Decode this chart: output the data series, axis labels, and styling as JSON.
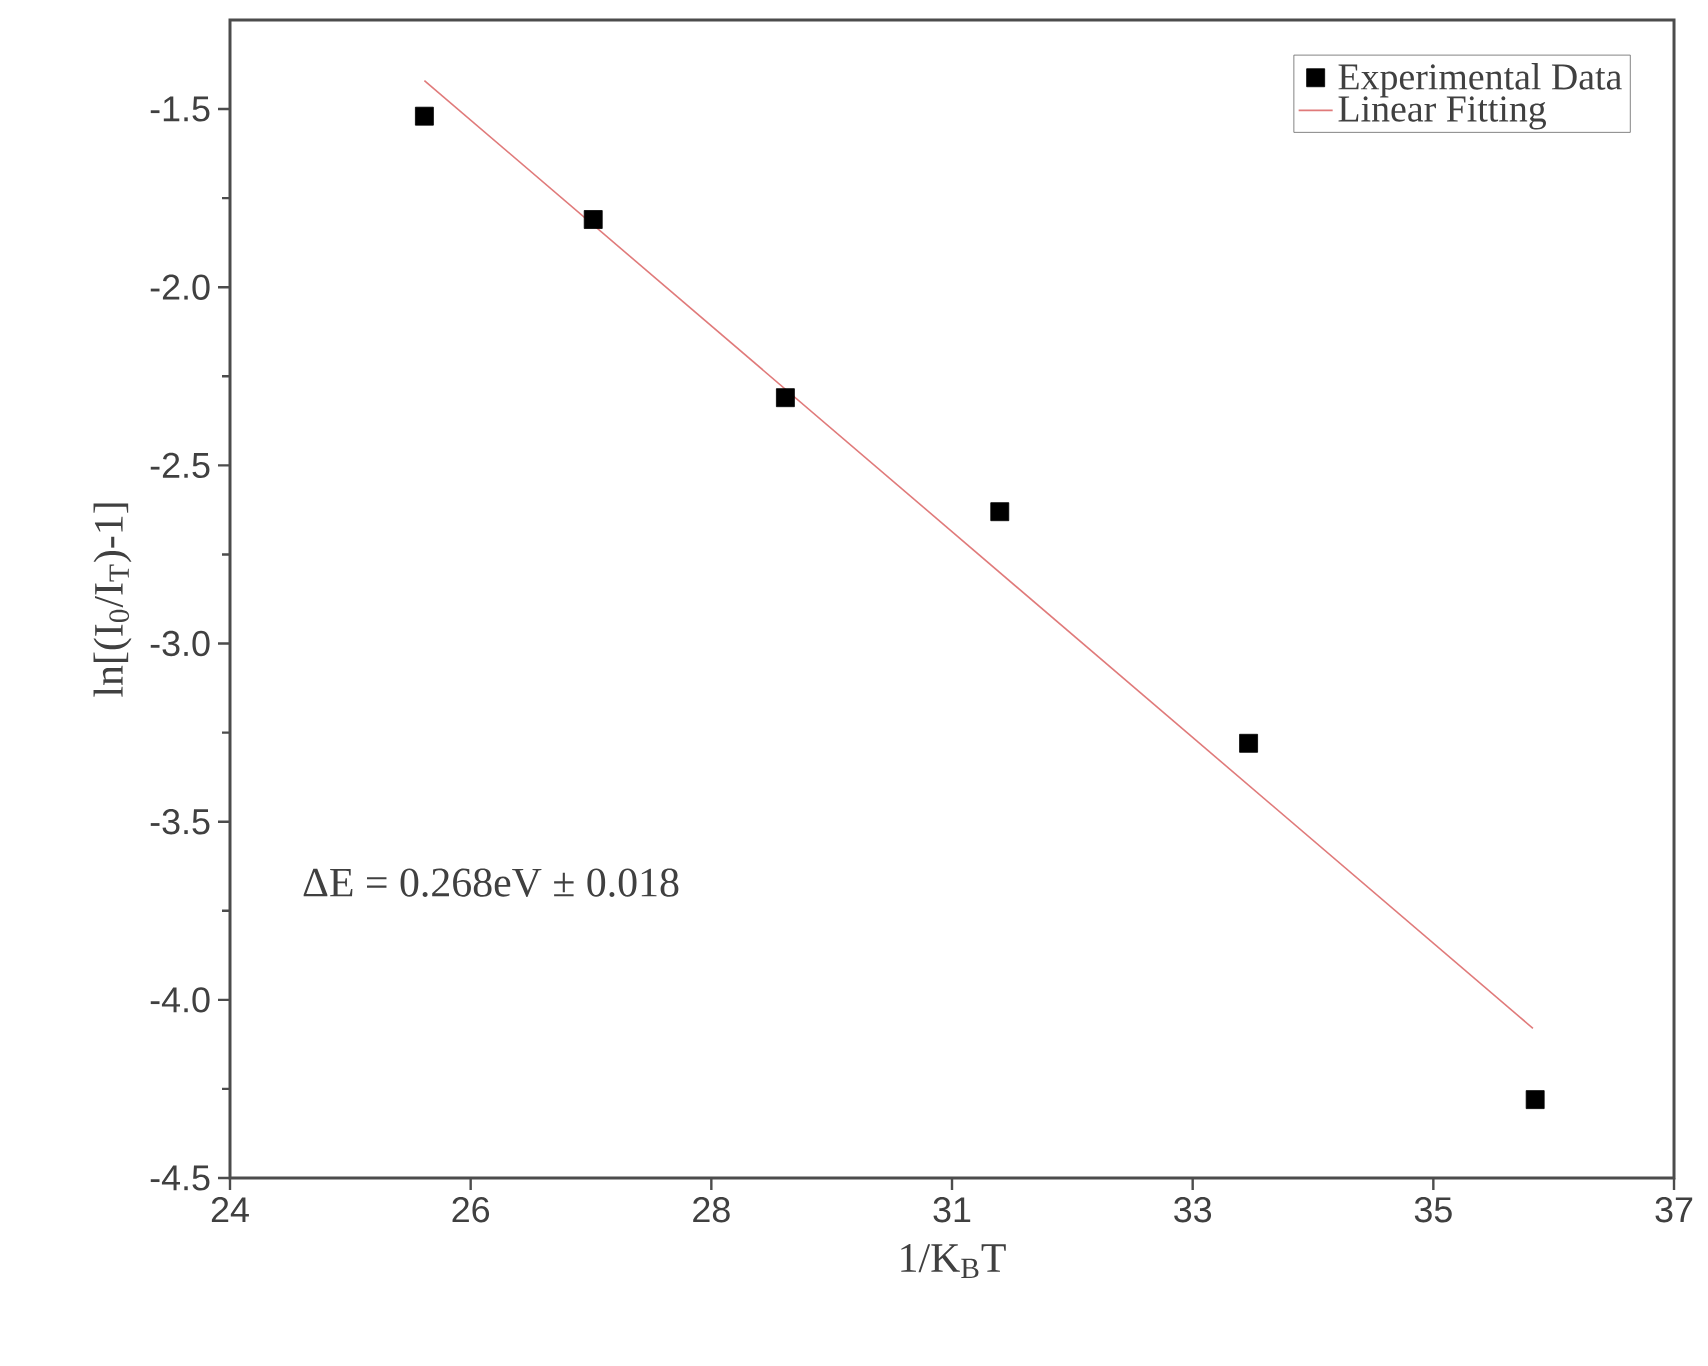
{
  "chart_data": {
    "type": "scatter",
    "xlabel": "1/K$_{B}$T",
    "ylabel": "ln[(I$_{0}$/I$_{T}$)-1]",
    "xlim": [
      24,
      37
    ],
    "ylim": [
      -4.5,
      -1.25
    ],
    "xticks": [
      {
        "value": 24,
        "label": "24"
      },
      {
        "value": 26.1667,
        "label": "26"
      },
      {
        "value": 28.3333,
        "label": "28"
      },
      {
        "value": 30.5,
        "label": "31"
      },
      {
        "value": 32.6667,
        "label": "33"
      },
      {
        "value": 34.8333,
        "label": "35"
      },
      {
        "value": 37,
        "label": "37"
      }
    ],
    "yticks": [
      -4.5,
      {
        "value": -4,
        "label": "-4.0"
      },
      -3.5,
      {
        "value": -3,
        "label": "-3.0"
      },
      -2.5,
      {
        "value": -2,
        "label": "-2.0"
      },
      -1.5
    ],
    "grid": false,
    "legend": "top right",
    "series": [
      {
        "name": "Experimental Data",
        "marker": "square",
        "color": "#000000",
        "x": [
          25.75,
          27.27,
          29.0,
          30.93,
          33.17,
          35.75
        ],
        "values": [
          -1.52,
          -1.81,
          -2.31,
          -2.63,
          -3.28,
          -4.28
        ]
      },
      {
        "name": "Linear Fitting",
        "type": "line",
        "color": "#e07a7a",
        "x": [
          25.75,
          35.73
        ],
        "values": [
          -1.42,
          -4.08
        ]
      }
    ],
    "annotations": [
      "ΔE = 0.268eV ± 0.018"
    ]
  }
}
